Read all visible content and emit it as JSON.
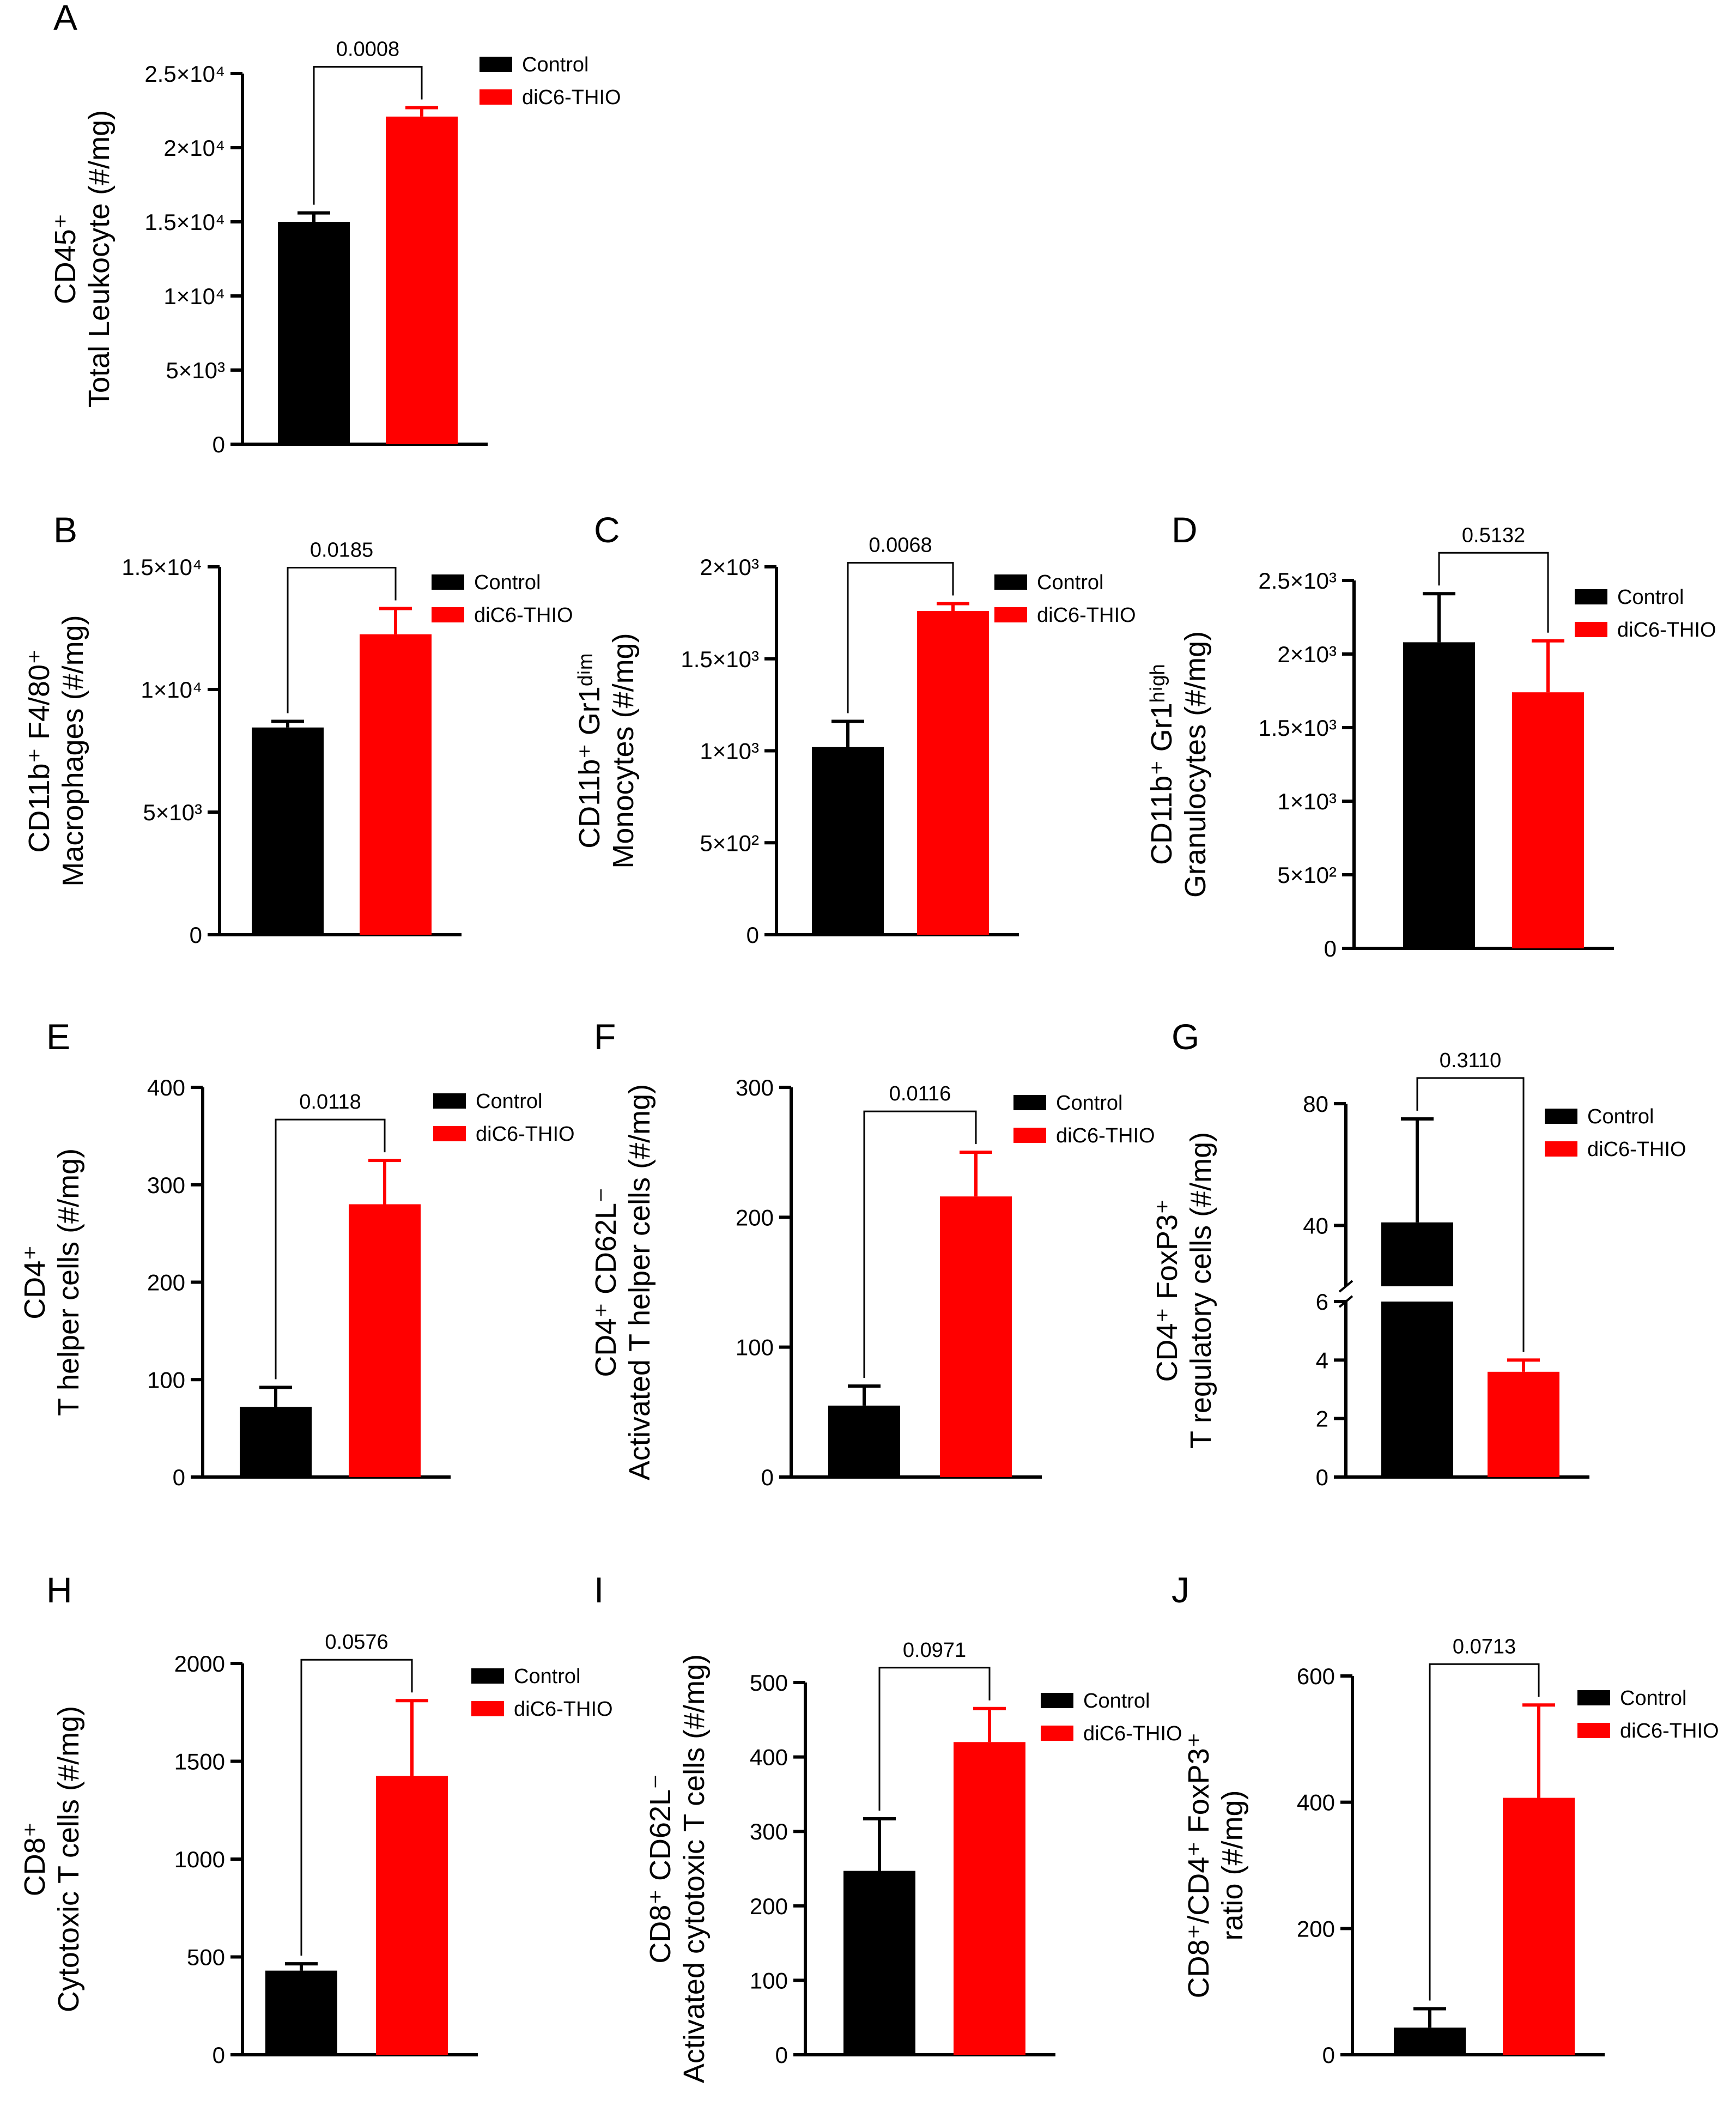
{
  "colors": {
    "control": "#000000",
    "treatment": "#ff0000",
    "axis": "#000000"
  },
  "legend": {
    "control": "Control",
    "treatment": "diC6-THIO"
  },
  "chart_data": [
    {
      "panel": "A",
      "type": "bar",
      "categories": [
        "Control",
        "diC6-THIO"
      ],
      "values": [
        15000,
        22100
      ],
      "errors": [
        600,
        600
      ],
      "ylabel_lines": [
        "CD45⁺",
        "Total Leukocyte  (#/mg)"
      ],
      "ylim": [
        0,
        25000
      ],
      "yticks": [
        0,
        5000,
        10000,
        15000,
        20000,
        25000
      ],
      "ytick_labels": [
        "0",
        "5×10³",
        "1×10⁴",
        "1.5×10⁴",
        "2×10⁴",
        "2.5×10⁴"
      ],
      "pvalue": "0.0008",
      "legend_position": "top-right"
    },
    {
      "panel": "B",
      "type": "bar",
      "categories": [
        "Control",
        "diC6-THIO"
      ],
      "values": [
        8450,
        12250
      ],
      "errors": [
        250,
        1050
      ],
      "ylabel_lines": [
        "CD11b⁺ F4/80⁺",
        "Macrophages (#/mg)"
      ],
      "ylim": [
        0,
        15000
      ],
      "yticks": [
        0,
        5000,
        10000,
        15000
      ],
      "ytick_labels": [
        "0",
        "5×10³",
        "1×10⁴",
        "1.5×10⁴"
      ],
      "pvalue": "0.0185",
      "legend_position": "top-right"
    },
    {
      "panel": "C",
      "type": "bar",
      "categories": [
        "Control",
        "diC6-THIO"
      ],
      "values": [
        1020,
        1760
      ],
      "errors": [
        140,
        40
      ],
      "ylabel_lines": [
        "CD11b⁺ Gr1ᵈⁱᵐ",
        "Monocytes (#/mg)"
      ],
      "ylim": [
        0,
        2000
      ],
      "yticks": [
        0,
        500,
        1000,
        1500,
        2000
      ],
      "ytick_labels": [
        "0",
        "5×10²",
        "1×10³",
        "1.5×10³",
        "2×10³"
      ],
      "pvalue": "0.0068",
      "legend_position": "top-right"
    },
    {
      "panel": "D",
      "type": "bar",
      "categories": [
        "Control",
        "diC6-THIO"
      ],
      "values": [
        2080,
        1740
      ],
      "errors": [
        330,
        350
      ],
      "ylabel_lines": [
        "CD11b⁺ Gr1ʰⁱᵍʰ",
        "Granulocytes (#/mg)"
      ],
      "ylim": [
        0,
        2500
      ],
      "yticks": [
        0,
        500,
        1000,
        1500,
        2000,
        2500
      ],
      "ytick_labels": [
        "0",
        "5×10²",
        "1×10³",
        "1.5×10³",
        "2×10³",
        "2.5×10³"
      ],
      "pvalue": "0.5132",
      "legend_position": "top-right"
    },
    {
      "panel": "E",
      "type": "bar",
      "categories": [
        "Control",
        "diC6-THIO"
      ],
      "values": [
        72,
        280
      ],
      "errors": [
        20,
        45
      ],
      "ylabel_lines": [
        "CD4⁺",
        "T helper cells (#/mg)"
      ],
      "ylim": [
        0,
        400
      ],
      "yticks": [
        0,
        100,
        200,
        300,
        400
      ],
      "ytick_labels": [
        "0",
        "100",
        "200",
        "300",
        "400"
      ],
      "pvalue": "0.0118",
      "legend_position": "top-right"
    },
    {
      "panel": "F",
      "type": "bar",
      "categories": [
        "Control",
        "diC6-THIO"
      ],
      "values": [
        55,
        216
      ],
      "errors": [
        15,
        34
      ],
      "ylabel_lines": [
        "CD4⁺ CD62L⁻",
        "Activated T helper cells (#/mg)"
      ],
      "ylim": [
        0,
        300
      ],
      "yticks": [
        0,
        100,
        200,
        300
      ],
      "ytick_labels": [
        "0",
        "100",
        "200",
        "300"
      ],
      "pvalue": "0.0116",
      "legend_position": "top-right"
    },
    {
      "panel": "G",
      "type": "bar",
      "categories": [
        "Control",
        "diC6-THIO"
      ],
      "values": [
        41,
        3.6
      ],
      "errors": [
        34,
        0.4
      ],
      "ylabel_lines": [
        "CD4⁺ FoxP3⁺",
        "T regulatory cells (#/mg)"
      ],
      "ylim": [
        0,
        80
      ],
      "axis_break": [
        6,
        20
      ],
      "yticks": [
        0,
        2,
        4,
        6,
        40,
        80
      ],
      "ytick_labels": [
        "0",
        "2",
        "4",
        "6",
        "40",
        "80"
      ],
      "pvalue": "0.3110",
      "legend_position": "top-right"
    },
    {
      "panel": "H",
      "type": "bar",
      "categories": [
        "Control",
        "diC6-THIO"
      ],
      "values": [
        430,
        1425
      ],
      "errors": [
        35,
        385
      ],
      "ylabel_lines": [
        "CD8⁺",
        "Cytotoxic T cells (#/mg)"
      ],
      "ylim": [
        0,
        2000
      ],
      "yticks": [
        0,
        500,
        1000,
        1500,
        2000
      ],
      "ytick_labels": [
        "0",
        "500",
        "1000",
        "1500",
        "2000"
      ],
      "pvalue": "0.0576",
      "legend_position": "top-right"
    },
    {
      "panel": "I",
      "type": "bar",
      "categories": [
        "Control",
        "diC6-THIO"
      ],
      "values": [
        247,
        420
      ],
      "errors": [
        70,
        45
      ],
      "ylabel_lines": [
        "CD8⁺ CD62L⁻",
        "Activated cytotoxic T cells (#/mg)"
      ],
      "ylim": [
        0,
        500
      ],
      "yticks": [
        0,
        100,
        200,
        300,
        400,
        500
      ],
      "ytick_labels": [
        "0",
        "100",
        "200",
        "300",
        "400",
        "500"
      ],
      "pvalue": "0.0971",
      "legend_position": "top-right"
    },
    {
      "panel": "J",
      "type": "bar",
      "categories": [
        "Control",
        "diC6-THIO"
      ],
      "values": [
        43,
        407
      ],
      "errors": [
        30,
        147
      ],
      "ylabel_lines": [
        "CD8⁺/CD4⁺ FoxP3⁺",
        "ratio (#/mg)"
      ],
      "ylim": [
        0,
        600
      ],
      "yticks": [
        0,
        200,
        400,
        600
      ],
      "ytick_labels": [
        "0",
        "200",
        "400",
        "600"
      ],
      "pvalue": "0.0713",
      "legend_position": "top-right"
    }
  ]
}
